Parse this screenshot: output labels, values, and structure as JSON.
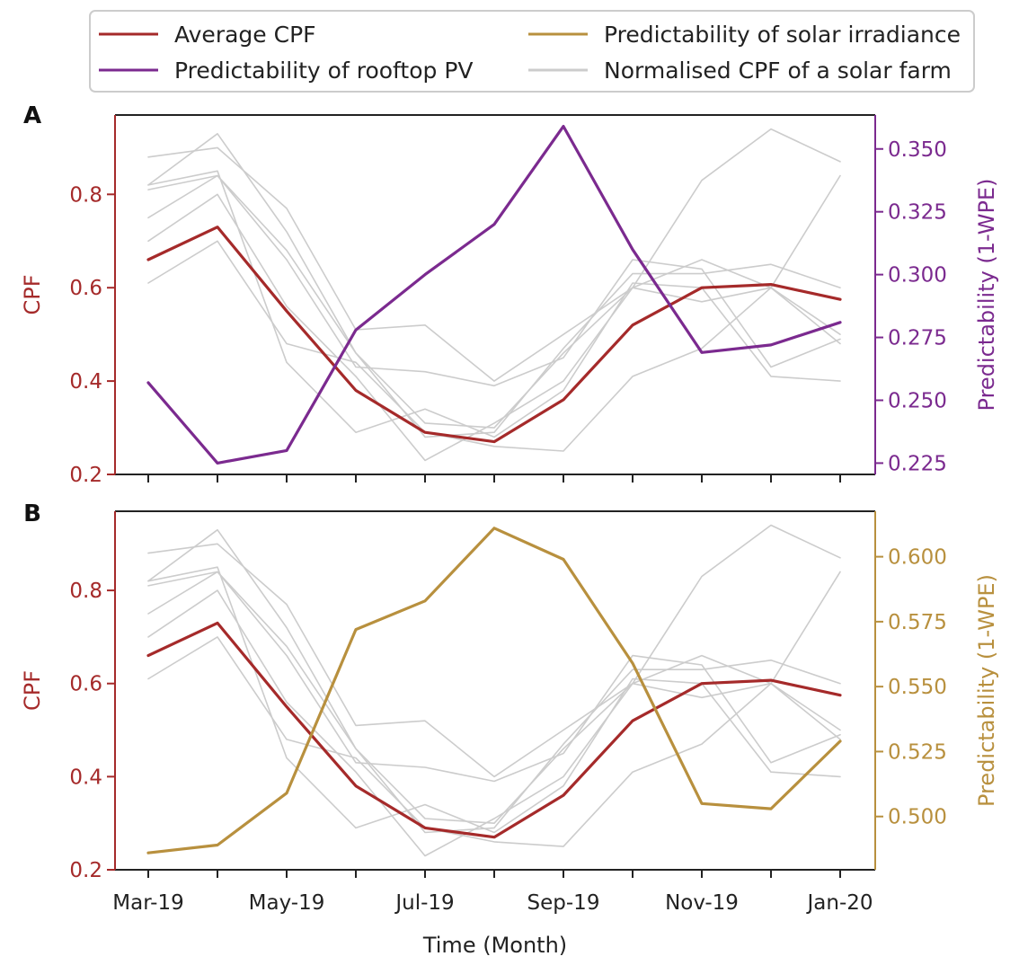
{
  "legend": {
    "items": [
      {
        "label": "Average CPF",
        "color": "#a52a2a"
      },
      {
        "label": "Predictability of solar irradiance",
        "color": "#b8903e"
      },
      {
        "label": "Predictability of rooftop PV",
        "color": "#7b2a8f"
      },
      {
        "label": "Normalised CPF of a solar farm",
        "color": "#cccccc"
      }
    ]
  },
  "xlabel": "Time (Month)",
  "chart_data": [
    {
      "panel_label": "A",
      "type": "line",
      "x": [
        "Mar-19",
        "Apr-19",
        "May-19",
        "Jun-19",
        "Jul-19",
        "Aug-19",
        "Sep-19",
        "Oct-19",
        "Nov-19",
        "Dec-19",
        "Jan-20"
      ],
      "x_tick_labels": [
        "Mar-19",
        "May-19",
        "Jul-19",
        "Sep-19",
        "Nov-19",
        "Jan-20"
      ],
      "xlabel": "Time (Month)",
      "ylabel_left": "CPF",
      "ylabel_right": "Predictability (1-WPE)",
      "ylim_left": [
        0.2,
        0.97
      ],
      "ylim_right": [
        0.2205,
        0.3635
      ],
      "yticks_left": [
        "0.2",
        "0.4",
        "0.6",
        "0.8"
      ],
      "yticks_right": [
        "0.225",
        "0.250",
        "0.275",
        "0.300",
        "0.325",
        "0.350"
      ],
      "left_color": "#a52a2a",
      "right_color": "#7b2a8f",
      "series": [
        {
          "name": "Average CPF",
          "axis": "left",
          "color": "#a52a2a",
          "values": [
            0.66,
            0.73,
            0.55,
            0.38,
            0.29,
            0.27,
            0.36,
            0.52,
            0.6,
            0.607,
            0.575
          ]
        },
        {
          "name": "Predictability of rooftop PV",
          "axis": "right",
          "color": "#7b2a8f",
          "values": [
            0.257,
            0.225,
            0.23,
            0.278,
            0.3,
            0.32,
            0.359,
            0.31,
            0.269,
            0.272,
            0.281
          ]
        },
        {
          "name": "Normalised CPF of a solar farm",
          "axis": "left",
          "color": "#cccccc",
          "values": [
            0.88,
            0.9,
            0.77,
            0.51,
            0.52,
            0.4,
            0.5,
            0.6,
            0.83,
            0.94,
            0.87
          ]
        },
        {
          "name": "Normalised CPF of a solar farm",
          "axis": "left",
          "color": "#cccccc",
          "values": [
            0.82,
            0.93,
            0.72,
            0.46,
            0.31,
            0.3,
            0.46,
            0.6,
            0.57,
            0.6,
            0.5
          ]
        },
        {
          "name": "Normalised CPF of a solar farm",
          "axis": "left",
          "color": "#cccccc",
          "values": [
            0.81,
            0.84,
            0.68,
            0.46,
            0.28,
            0.29,
            0.47,
            0.63,
            0.63,
            0.65,
            0.6
          ]
        },
        {
          "name": "Normalised CPF of a solar farm",
          "axis": "left",
          "color": "#cccccc",
          "values": [
            0.75,
            0.84,
            0.66,
            0.43,
            0.42,
            0.39,
            0.45,
            0.66,
            0.64,
            0.43,
            0.49
          ]
        },
        {
          "name": "Normalised CPF of a solar farm",
          "axis": "left",
          "color": "#cccccc",
          "values": [
            0.7,
            0.8,
            0.56,
            0.41,
            0.23,
            0.31,
            0.4,
            0.6,
            0.66,
            0.6,
            0.84
          ]
        },
        {
          "name": "Normalised CPF of a solar farm",
          "axis": "left",
          "color": "#cccccc",
          "values": [
            0.61,
            0.7,
            0.48,
            0.44,
            0.29,
            0.26,
            0.25,
            0.41,
            0.47,
            0.6,
            0.48
          ]
        },
        {
          "name": "Normalised CPF of a solar farm",
          "axis": "left",
          "color": "#cccccc",
          "values": [
            0.82,
            0.85,
            0.44,
            0.29,
            0.34,
            0.28,
            0.38,
            0.61,
            0.6,
            0.41,
            0.4
          ]
        }
      ]
    },
    {
      "panel_label": "B",
      "type": "line",
      "x": [
        "Mar-19",
        "Apr-19",
        "May-19",
        "Jun-19",
        "Jul-19",
        "Aug-19",
        "Sep-19",
        "Oct-19",
        "Nov-19",
        "Dec-19",
        "Jan-20"
      ],
      "x_tick_labels": [
        "Mar-19",
        "May-19",
        "Jul-19",
        "Sep-19",
        "Nov-19",
        "Jan-20"
      ],
      "xlabel": "Time (Month)",
      "ylabel_left": "CPF",
      "ylabel_right": "Predictability (1-WPE)",
      "ylim_left": [
        0.2,
        0.97
      ],
      "ylim_right": [
        0.4795,
        0.6175
      ],
      "yticks_left": [
        "0.2",
        "0.4",
        "0.6",
        "0.8"
      ],
      "yticks_right": [
        "0.500",
        "0.525",
        "0.550",
        "0.575",
        "0.600"
      ],
      "left_color": "#a52a2a",
      "right_color": "#b8903e",
      "series": [
        {
          "name": "Average CPF",
          "axis": "left",
          "color": "#a52a2a",
          "values": [
            0.66,
            0.73,
            0.55,
            0.38,
            0.29,
            0.27,
            0.36,
            0.52,
            0.6,
            0.607,
            0.575
          ]
        },
        {
          "name": "Predictability of solar irradiance",
          "axis": "right",
          "color": "#b8903e",
          "values": [
            0.486,
            0.489,
            0.509,
            0.572,
            0.583,
            0.611,
            0.599,
            0.559,
            0.505,
            0.503,
            0.529
          ]
        },
        {
          "name": "Normalised CPF of a solar farm",
          "axis": "left",
          "color": "#cccccc",
          "values": [
            0.88,
            0.9,
            0.77,
            0.51,
            0.52,
            0.4,
            0.5,
            0.6,
            0.83,
            0.94,
            0.87
          ]
        },
        {
          "name": "Normalised CPF of a solar farm",
          "axis": "left",
          "color": "#cccccc",
          "values": [
            0.82,
            0.93,
            0.72,
            0.46,
            0.31,
            0.3,
            0.46,
            0.6,
            0.57,
            0.6,
            0.5
          ]
        },
        {
          "name": "Normalised CPF of a solar farm",
          "axis": "left",
          "color": "#cccccc",
          "values": [
            0.81,
            0.84,
            0.68,
            0.46,
            0.28,
            0.29,
            0.47,
            0.63,
            0.63,
            0.65,
            0.6
          ]
        },
        {
          "name": "Normalised CPF of a solar farm",
          "axis": "left",
          "color": "#cccccc",
          "values": [
            0.75,
            0.84,
            0.66,
            0.43,
            0.42,
            0.39,
            0.45,
            0.66,
            0.64,
            0.43,
            0.49
          ]
        },
        {
          "name": "Normalised CPF of a solar farm",
          "axis": "left",
          "color": "#cccccc",
          "values": [
            0.7,
            0.8,
            0.56,
            0.41,
            0.23,
            0.31,
            0.4,
            0.6,
            0.66,
            0.6,
            0.84
          ]
        },
        {
          "name": "Normalised CPF of a solar farm",
          "axis": "left",
          "color": "#cccccc",
          "values": [
            0.61,
            0.7,
            0.48,
            0.44,
            0.29,
            0.26,
            0.25,
            0.41,
            0.47,
            0.6,
            0.48
          ]
        },
        {
          "name": "Normalised CPF of a solar farm",
          "axis": "left",
          "color": "#cccccc",
          "values": [
            0.82,
            0.85,
            0.44,
            0.29,
            0.34,
            0.28,
            0.38,
            0.61,
            0.6,
            0.41,
            0.4
          ]
        }
      ]
    }
  ]
}
